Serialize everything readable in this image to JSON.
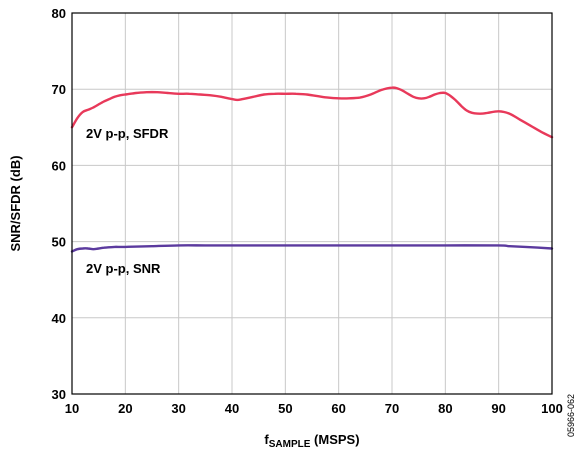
{
  "chart_data": {
    "type": "line",
    "title": "",
    "xlabel_main": "f",
    "xlabel_sub": "SAMPLE",
    "xlabel_rest": " (MSPS)",
    "ylabel": "SNR/SFDR (dB)",
    "xlim": [
      10,
      100
    ],
    "ylim": [
      30,
      80
    ],
    "xticks": [
      "10",
      "20",
      "30",
      "40",
      "50",
      "60",
      "70",
      "80",
      "90",
      "100"
    ],
    "yticks": [
      "30",
      "40",
      "50",
      "60",
      "70",
      "80"
    ],
    "grid": true,
    "figure_code": "05966-062",
    "series": [
      {
        "label": "2V p-p, SFDR",
        "color": "#e8395a",
        "x": [
          10,
          11,
          12,
          13,
          14,
          15,
          16,
          17,
          18,
          19,
          20,
          22,
          24,
          26,
          28,
          30,
          32,
          34,
          36,
          38,
          40,
          41,
          42,
          44,
          46,
          48,
          50,
          52,
          54,
          56,
          58,
          60,
          62,
          64,
          66,
          68,
          70,
          71,
          72,
          73,
          74,
          75,
          76,
          77,
          78,
          79,
          80,
          81,
          82,
          83,
          84,
          85,
          86,
          87,
          88,
          90,
          92,
          94,
          96,
          98,
          100
        ],
        "y": [
          65.0,
          66.2,
          67.0,
          67.3,
          67.6,
          68.0,
          68.4,
          68.7,
          69.0,
          69.2,
          69.3,
          69.5,
          69.6,
          69.6,
          69.5,
          69.4,
          69.4,
          69.3,
          69.2,
          69.0,
          68.7,
          68.6,
          68.7,
          69.0,
          69.3,
          69.4,
          69.4,
          69.4,
          69.3,
          69.1,
          68.9,
          68.8,
          68.8,
          68.9,
          69.3,
          69.9,
          70.2,
          70.1,
          69.8,
          69.4,
          69.0,
          68.8,
          68.8,
          69.0,
          69.3,
          69.5,
          69.5,
          69.1,
          68.5,
          67.8,
          67.2,
          66.9,
          66.8,
          66.8,
          66.9,
          67.1,
          66.8,
          66.0,
          65.2,
          64.4,
          63.7
        ]
      },
      {
        "label": "2V p-p, SNR",
        "color": "#5b3a9e",
        "x": [
          10,
          11,
          12,
          13,
          14,
          15,
          16,
          18,
          20,
          25,
          30,
          35,
          40,
          50,
          60,
          70,
          80,
          90,
          92,
          95,
          100
        ],
        "y": [
          48.7,
          49.0,
          49.1,
          49.1,
          49.0,
          49.1,
          49.2,
          49.3,
          49.3,
          49.4,
          49.5,
          49.5,
          49.5,
          49.5,
          49.5,
          49.5,
          49.5,
          49.5,
          49.4,
          49.3,
          49.1
        ]
      }
    ]
  }
}
